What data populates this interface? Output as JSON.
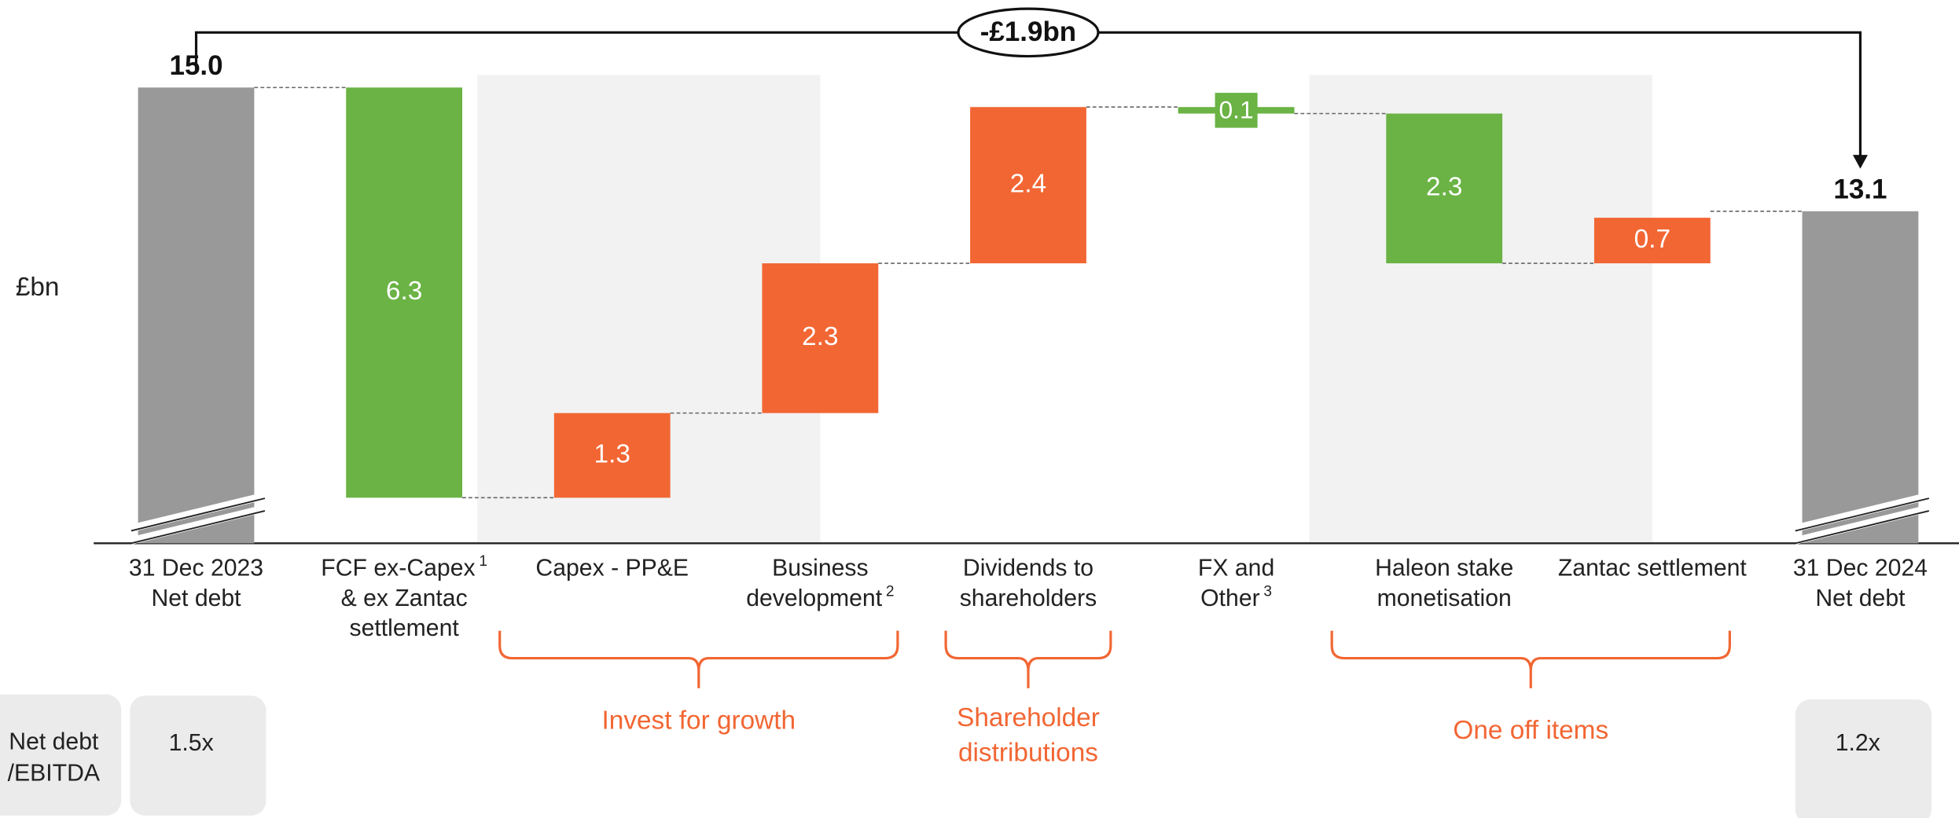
{
  "chart_data": {
    "type": "waterfall",
    "ylabel": "£bn",
    "annotation": "-£1.9bn",
    "categories": [
      [
        "31 Dec 2023",
        "Net debt"
      ],
      [
        "FCF ex-Capex",
        "& ex Zantac",
        "settlement"
      ],
      [
        "Capex - PP&E"
      ],
      [
        "Business",
        "development"
      ],
      [
        "Dividends to",
        "shareholders"
      ],
      [
        "FX and",
        "Other"
      ],
      [
        "Haleon stake",
        "monetisation"
      ],
      [
        "Zantac settlement"
      ],
      [
        "31 Dec 2024",
        "Net debt"
      ]
    ],
    "category_notes": [
      null,
      "1",
      null,
      "2",
      null,
      "3",
      null,
      null,
      null
    ],
    "values": [
      15,
      6.3,
      1.3,
      2.3,
      2.4,
      0.1,
      2.3,
      0.7,
      13.1
    ],
    "value_labels": [
      "15.0",
      "6.3",
      "1.3",
      "2.3",
      "2.4",
      "0.1",
      "2.3",
      "0.7",
      "13.1"
    ],
    "measures": [
      "total",
      "decrease",
      "increase",
      "increase",
      "increase",
      "decrease",
      "decrease",
      "increase",
      "total"
    ],
    "colors": {
      "total": "#999999",
      "decrease": "#6ab344",
      "increase": "#f26633"
    },
    "ylim": [
      8,
      15.5
    ],
    "groups": [
      {
        "label": [
          "Invest for growth"
        ],
        "from": 2,
        "to": 3,
        "shaded": true
      },
      {
        "label": [
          "Shareholder",
          "distributions"
        ],
        "from": 4,
        "to": 4,
        "shaded": false
      },
      {
        "label": [
          "One off items"
        ],
        "from": 6,
        "to": 7,
        "shaded": true
      }
    ],
    "ratio": {
      "label": [
        "Net debt",
        "/EBITDA"
      ],
      "start": "1.5x",
      "end": "1.2x"
    }
  }
}
